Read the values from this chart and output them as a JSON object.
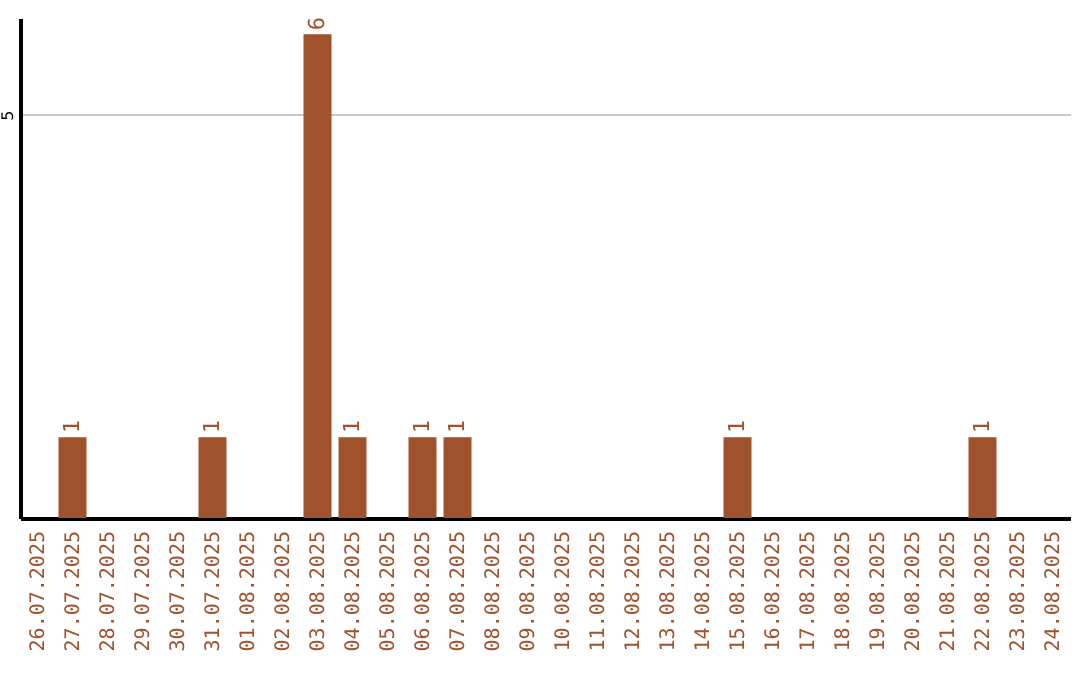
{
  "chart_data": {
    "type": "bar",
    "categories": [
      "26.07.2025",
      "27.07.2025",
      "28.07.2025",
      "29.07.2025",
      "30.07.2025",
      "31.07.2025",
      "01.08.2025",
      "02.08.2025",
      "03.08.2025",
      "04.08.2025",
      "05.08.2025",
      "06.08.2025",
      "07.08.2025",
      "08.08.2025",
      "09.08.2025",
      "10.08.2025",
      "11.08.2025",
      "12.08.2025",
      "13.08.2025",
      "14.08.2025",
      "15.08.2025",
      "16.08.2025",
      "17.08.2025",
      "18.08.2025",
      "19.08.2025",
      "20.08.2025",
      "21.08.2025",
      "22.08.2025",
      "23.08.2025",
      "24.08.2025"
    ],
    "values": [
      0,
      1,
      0,
      0,
      0,
      1,
      0,
      0,
      6,
      1,
      0,
      1,
      1,
      0,
      0,
      0,
      0,
      0,
      0,
      0,
      1,
      0,
      0,
      0,
      0,
      0,
      0,
      1,
      0,
      0
    ],
    "value_labels": [
      null,
      "1",
      null,
      null,
      null,
      "1",
      null,
      null,
      "6",
      "1",
      null,
      "1",
      "1",
      null,
      null,
      null,
      null,
      null,
      null,
      null,
      "1",
      null,
      null,
      null,
      null,
      null,
      null,
      "1",
      null,
      null
    ],
    "color": "#a0522d",
    "ylim": [
      0,
      6.2
    ],
    "yticks": [
      5
    ],
    "grid": "y"
  }
}
